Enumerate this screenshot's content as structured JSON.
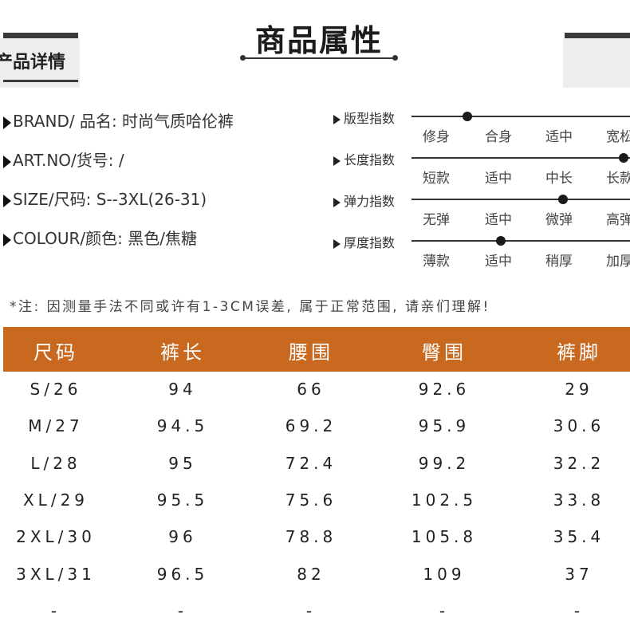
{
  "header": {
    "title": "商品属性",
    "section_label": "产品详情"
  },
  "info": [
    {
      "text": "BRAND/ 品名: 时尚气质哈伦裤"
    },
    {
      "text": "ART.NO/货号: /"
    },
    {
      "text": "SIZE/尺码: S--3XL(26-31)"
    },
    {
      "text": "COLOUR/颜色: 黑色/焦糖"
    }
  ],
  "indices": [
    {
      "label": "版型指数",
      "options": [
        "修身",
        "合身",
        "适中",
        "宽松"
      ],
      "level": 0.25
    },
    {
      "label": "长度指数",
      "options": [
        "短款",
        "适中",
        "中长",
        "长款"
      ],
      "level": 0.95
    },
    {
      "label": "弹力指数",
      "options": [
        "无弹",
        "适中",
        "微弹",
        "高弹"
      ],
      "level": 0.68
    },
    {
      "label": "厚度指数",
      "options": [
        "薄款",
        "适中",
        "稍厚",
        "加厚"
      ],
      "level": 0.4
    }
  ],
  "note": "*注: 因测量手法不同或许有1-3CM误差, 属于正常范围, 请亲们理解!",
  "table": {
    "headers": [
      "尺码",
      "裤长",
      "腰围",
      "臀围",
      "裤脚"
    ],
    "rows": [
      [
        "S/26",
        "94",
        "66",
        "92.6",
        "29"
      ],
      [
        "M/27",
        "94.5",
        "69.2",
        "95.9",
        "30.6"
      ],
      [
        "L/28",
        "95",
        "72.4",
        "99.2",
        "32.2"
      ],
      [
        "XL/29",
        "95.5",
        "75.6",
        "102.5",
        "33.8"
      ],
      [
        "2XL/30",
        "96",
        "78.8",
        "105.8",
        "35.4"
      ],
      [
        "3XL/31",
        "96.5",
        "82",
        "109",
        "37"
      ],
      [
        "-",
        "-",
        "-",
        "-",
        "-"
      ]
    ]
  }
}
